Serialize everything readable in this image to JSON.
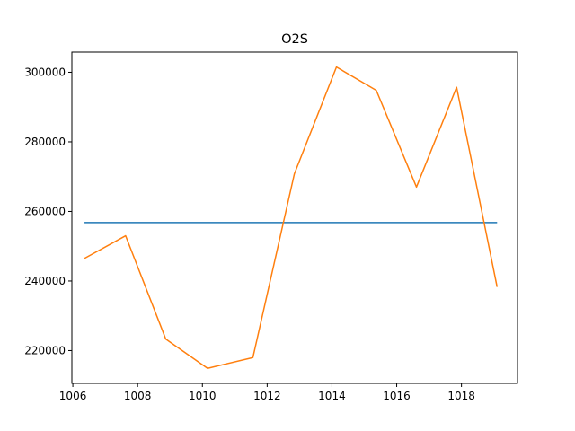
{
  "chart_data": {
    "type": "line",
    "title": "O2S",
    "xlabel": "",
    "ylabel": "",
    "xlim": [
      1005.97,
      1019.73
    ],
    "ylim": [
      210570,
      305800
    ],
    "xticks": [
      1006,
      1008,
      1010,
      1012,
      1014,
      1016,
      1018
    ],
    "yticks": [
      220000,
      240000,
      260000,
      280000,
      300000
    ],
    "grid": false,
    "series": [
      {
        "color": "#1f77b4",
        "x": [
          1006.36,
          1019.1
        ],
        "y": [
          256800,
          256800
        ]
      },
      {
        "color": "#ff7f0e",
        "x": [
          1006.36,
          1007.63,
          1008.87,
          1010.16,
          1011.56,
          1012.84,
          1014.14,
          1015.37,
          1016.61,
          1017.85,
          1019.1
        ],
        "y": [
          246500,
          253000,
          223300,
          214900,
          218000,
          270800,
          301500,
          294800,
          267000,
          295700,
          238300
        ]
      }
    ]
  }
}
